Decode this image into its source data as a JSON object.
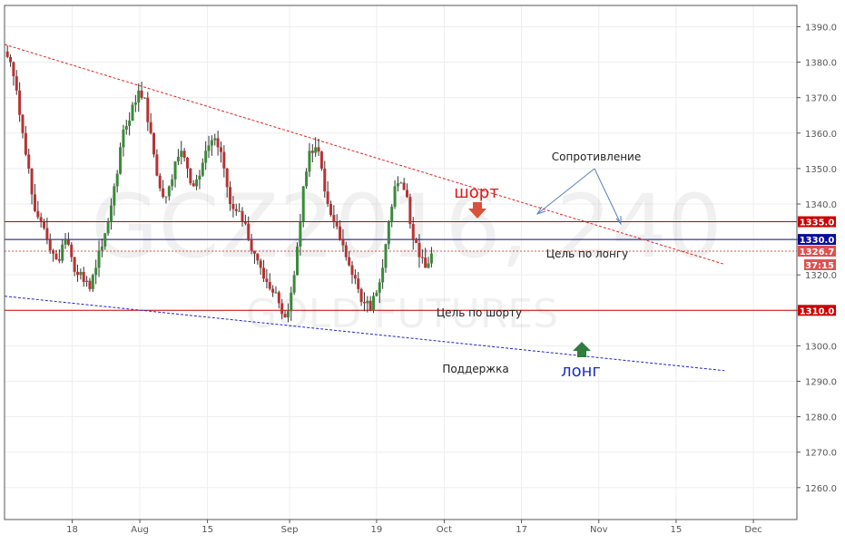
{
  "chart_data": {
    "type": "candlestick",
    "watermark": {
      "symbol": "GCZ2016, 240",
      "name": "GOLD FUTURES"
    },
    "y_axis": {
      "range": [
        1251,
        1396
      ],
      "ticks": [
        "1260.0",
        "1270.0",
        "1280.0",
        "1290.0",
        "1300.0",
        "1310.0",
        "1320.0",
        "1330.0",
        "1340.0",
        "1350.0",
        "1360.0",
        "1370.0",
        "1380.0",
        "1390.0"
      ]
    },
    "x_axis": {
      "ticks": [
        {
          "label": "18",
          "x": 18
        },
        {
          "label": "Aug",
          "x": 32
        },
        {
          "label": "15",
          "x": 46
        },
        {
          "label": "Sep",
          "x": 63
        },
        {
          "label": "19",
          "x": 81
        },
        {
          "label": "Oct",
          "x": 95
        },
        {
          "label": "17",
          "x": 111
        },
        {
          "label": "Nov",
          "x": 127
        },
        {
          "label": "15",
          "x": 143
        },
        {
          "label": "Dec",
          "x": 159
        }
      ],
      "range": [
        4,
        168
      ]
    },
    "price_levels": [
      {
        "value": 1335.0,
        "label": "1335.0",
        "color": "#cc0000",
        "style": "solid"
      },
      {
        "value": 1330.0,
        "label": "1330.0",
        "color": "#0a0a9a",
        "style": "solid"
      },
      {
        "value": 1326.7,
        "label": "1326.7",
        "color": "#e05050",
        "style": "dotted"
      },
      {
        "value": 1310.0,
        "label": "1310.0",
        "color": "#cc0000",
        "style": "solid"
      }
    ],
    "countdown": "37:15",
    "trendlines": [
      {
        "name": "resistance",
        "color": "#e52222",
        "from": [
          4,
          1385
        ],
        "to": [
          153,
          1323
        ]
      },
      {
        "name": "support",
        "color": "#2222cc",
        "from": [
          4,
          1314
        ],
        "to": [
          153,
          1293
        ]
      }
    ],
    "annotations": {
      "resistance": "Сопротивление",
      "target_long": "Цель по лонгу",
      "target_short": "Цель по шорту",
      "support": "Поддержка",
      "short": "шорт",
      "long": "лонг"
    },
    "candles_close": [
      1380,
      1372,
      1360,
      1350,
      1338,
      1335,
      1330,
      1326,
      1324,
      1330,
      1325,
      1320,
      1318,
      1316,
      1322,
      1328,
      1335,
      1345,
      1356,
      1362,
      1368,
      1372,
      1370,
      1360,
      1348,
      1342,
      1345,
      1352,
      1355,
      1350,
      1345,
      1348,
      1355,
      1358,
      1356,
      1350,
      1340,
      1338,
      1335,
      1330,
      1326,
      1322,
      1318,
      1315,
      1312,
      1308,
      1315,
      1328,
      1345,
      1355,
      1356,
      1350,
      1340,
      1335,
      1330,
      1325,
      1320,
      1316,
      1312,
      1310,
      1315,
      1322,
      1335,
      1345,
      1346,
      1342,
      1330,
      1325,
      1322,
      1326
    ],
    "colors": {
      "up": "#3a8a3a",
      "down": "#b83232",
      "wick": "#333333"
    }
  }
}
